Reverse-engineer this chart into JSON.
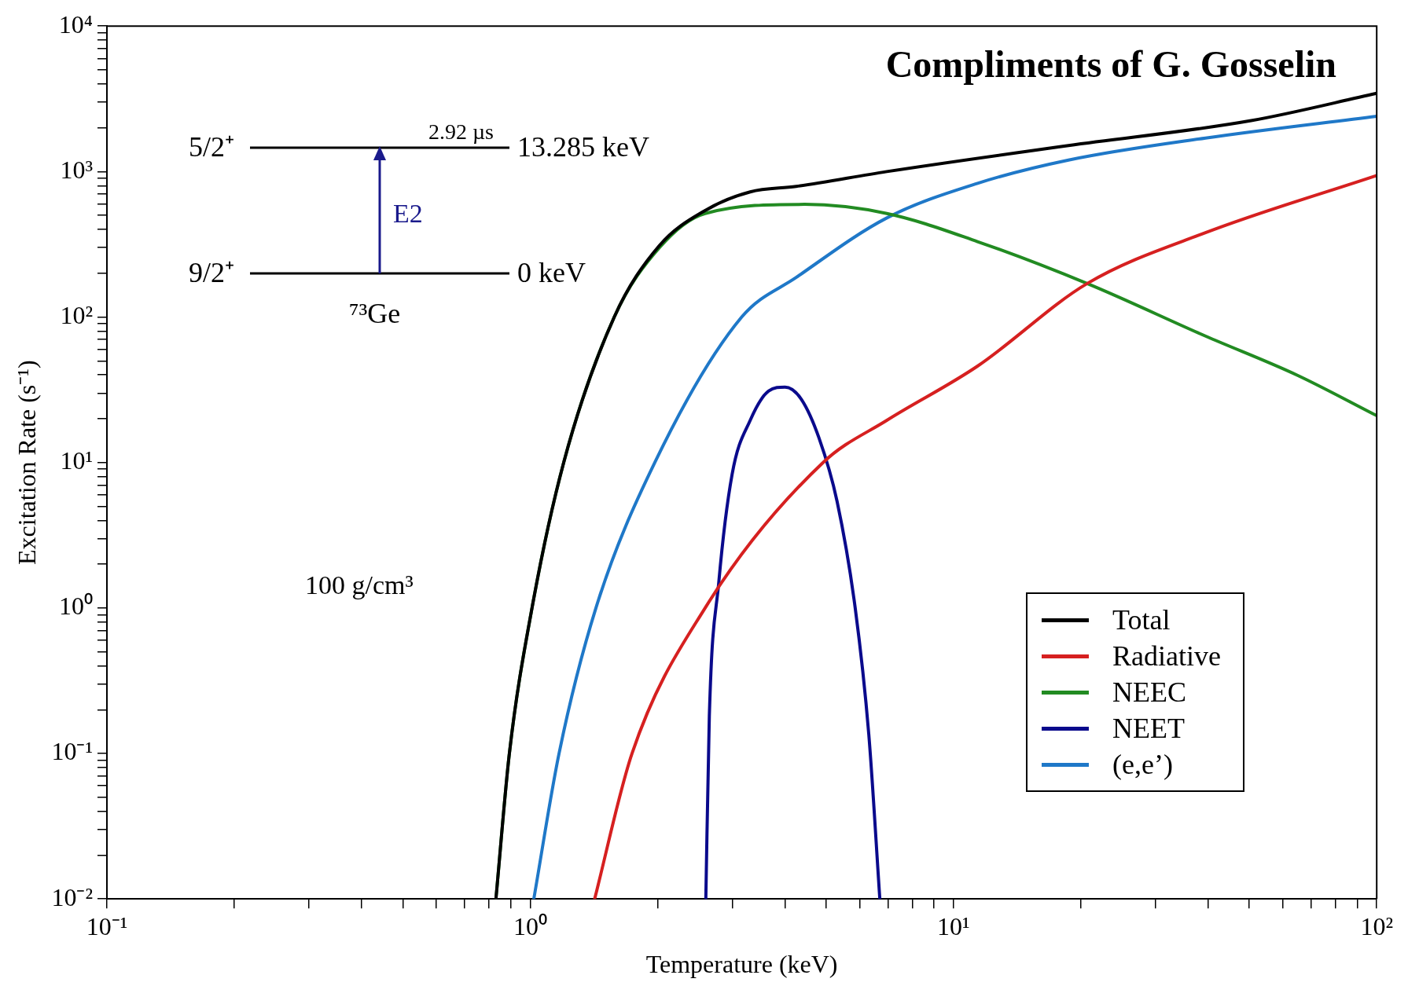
{
  "chart_data": {
    "type": "line",
    "xlabel": "Temperature (keV)",
    "ylabel": "Excitation Rate (s⁻¹)",
    "log": "xy",
    "grid": false,
    "legend": "bottom right",
    "marker": "none",
    "line_style": "solid",
    "xlim": [
      0.1,
      100
    ],
    "ylim": [
      0.01,
      10000
    ],
    "xticks": [
      {
        "value": 0.1,
        "label": "10⁻¹"
      },
      {
        "value": 0.2,
        "label": null
      },
      {
        "value": 0.3,
        "label": null
      },
      {
        "value": 0.4,
        "label": null
      },
      {
        "value": 0.5,
        "label": null
      },
      {
        "value": 0.6,
        "label": null
      },
      {
        "value": 0.7,
        "label": null
      },
      {
        "value": 0.8,
        "label": null
      },
      {
        "value": 0.9,
        "label": null
      },
      {
        "value": 1,
        "label": "10⁰"
      },
      {
        "value": 2,
        "label": null
      },
      {
        "value": 3,
        "label": null
      },
      {
        "value": 4,
        "label": null
      },
      {
        "value": 5,
        "label": null
      },
      {
        "value": 6,
        "label": null
      },
      {
        "value": 7,
        "label": null
      },
      {
        "value": 8,
        "label": null
      },
      {
        "value": 9,
        "label": null
      },
      {
        "value": 10,
        "label": "10¹"
      },
      {
        "value": 20,
        "label": null
      },
      {
        "value": 30,
        "label": null
      },
      {
        "value": 40,
        "label": null
      },
      {
        "value": 50,
        "label": null
      },
      {
        "value": 60,
        "label": null
      },
      {
        "value": 70,
        "label": null
      },
      {
        "value": 80,
        "label": null
      },
      {
        "value": 90,
        "label": null
      },
      {
        "value": 100,
        "label": "10²"
      }
    ],
    "yticks": [
      {
        "value": 0.01,
        "label": "10⁻²"
      },
      {
        "value": 0.02,
        "label": null
      },
      {
        "value": 0.03,
        "label": null
      },
      {
        "value": 0.04,
        "label": null
      },
      {
        "value": 0.05,
        "label": null
      },
      {
        "value": 0.06,
        "label": null
      },
      {
        "value": 0.07,
        "label": null
      },
      {
        "value": 0.08,
        "label": null
      },
      {
        "value": 0.09,
        "label": null
      },
      {
        "value": 0.1,
        "label": "10⁻¹"
      },
      {
        "value": 0.2,
        "label": null
      },
      {
        "value": 0.3,
        "label": null
      },
      {
        "value": 0.4,
        "label": null
      },
      {
        "value": 0.5,
        "label": null
      },
      {
        "value": 0.6,
        "label": null
      },
      {
        "value": 0.7,
        "label": null
      },
      {
        "value": 0.8,
        "label": null
      },
      {
        "value": 0.9,
        "label": null
      },
      {
        "value": 1,
        "label": "10⁰"
      },
      {
        "value": 2,
        "label": null
      },
      {
        "value": 3,
        "label": null
      },
      {
        "value": 4,
        "label": null
      },
      {
        "value": 5,
        "label": null
      },
      {
        "value": 6,
        "label": null
      },
      {
        "value": 7,
        "label": null
      },
      {
        "value": 8,
        "label": null
      },
      {
        "value": 9,
        "label": null
      },
      {
        "value": 10,
        "label": "10¹"
      },
      {
        "value": 20,
        "label": null
      },
      {
        "value": 30,
        "label": null
      },
      {
        "value": 40,
        "label": null
      },
      {
        "value": 50,
        "label": null
      },
      {
        "value": 60,
        "label": null
      },
      {
        "value": 70,
        "label": null
      },
      {
        "value": 80,
        "label": null
      },
      {
        "value": 90,
        "label": null
      },
      {
        "value": 100,
        "label": "10²"
      },
      {
        "value": 200,
        "label": null
      },
      {
        "value": 300,
        "label": null
      },
      {
        "value": 400,
        "label": null
      },
      {
        "value": 500,
        "label": null
      },
      {
        "value": 600,
        "label": null
      },
      {
        "value": 700,
        "label": null
      },
      {
        "value": 800,
        "label": null
      },
      {
        "value": 900,
        "label": null
      },
      {
        "value": 1000,
        "label": "10³"
      },
      {
        "value": 2000,
        "label": null
      },
      {
        "value": 3000,
        "label": null
      },
      {
        "value": 4000,
        "label": null
      },
      {
        "value": 5000,
        "label": null
      },
      {
        "value": 6000,
        "label": null
      },
      {
        "value": 7000,
        "label": null
      },
      {
        "value": 8000,
        "label": null
      },
      {
        "value": 9000,
        "label": null
      },
      {
        "value": 10000,
        "label": "10⁴"
      }
    ],
    "series": [
      {
        "name": "Total",
        "color": "#000000",
        "x": [
          0.83,
          0.893,
          1.01,
          1.2,
          1.58,
          2.02,
          2.59,
          3.31,
          4.25,
          6.96,
          18.7,
          50.5,
          100
        ],
        "values": [
          0.01,
          0.1,
          1,
          10,
          100,
          310,
          540,
          725,
          790,
          1000,
          1510,
          2240,
          3450
        ]
      },
      {
        "name": "Radiative",
        "color": "#d62020",
        "x": [
          1.42,
          1.74,
          2.59,
          4.92,
          6.96,
          11.4,
          20.7,
          39.4,
          100
        ],
        "values": [
          0.01,
          0.1,
          1,
          10,
          19.5,
          46,
          170,
          380,
          940
        ]
      },
      {
        "name": "NEEC",
        "color": "#228b22",
        "x": [
          0.83,
          0.893,
          1.01,
          1.2,
          1.58,
          2.02,
          2.59,
          4.45,
          6.96,
          11.4,
          20.7,
          39.4,
          64.7,
          100
        ],
        "values": [
          0.01,
          0.1,
          1,
          10,
          100,
          300,
          515,
          595,
          515,
          330,
          170,
          74,
          40,
          21
        ]
      },
      {
        "name": "NEET",
        "color": "#0a0a8c",
        "x": [
          2.6,
          2.65,
          2.79,
          3.0,
          3.31,
          3.66,
          4.0,
          4.36,
          4.81,
          5.31,
          5.86,
          6.31,
          6.7
        ],
        "values": [
          0.01,
          0.18,
          1.5,
          8.3,
          19.5,
          31,
          33,
          27.5,
          14.8,
          5.4,
          1,
          0.135,
          0.01
        ]
      },
      {
        "name": "(e,e’)",
        "color": "#1f78c8",
        "x": [
          1.02,
          1.17,
          1.43,
          1.97,
          3.16,
          4.25,
          6.96,
          11.4,
          18.7,
          39.4,
          100
        ],
        "values": [
          0.01,
          0.1,
          1,
          10,
          100,
          187,
          480,
          830,
          1200,
          1700,
          2400
        ]
      }
    ],
    "annotations": [
      "Compliments of G. Gosselin",
      "100 g/cm³",
      "5/2⁺",
      "2.92 µs",
      "13.285 keV",
      "E2",
      "9/2⁺",
      "0 keV",
      "⁷³Ge"
    ]
  }
}
